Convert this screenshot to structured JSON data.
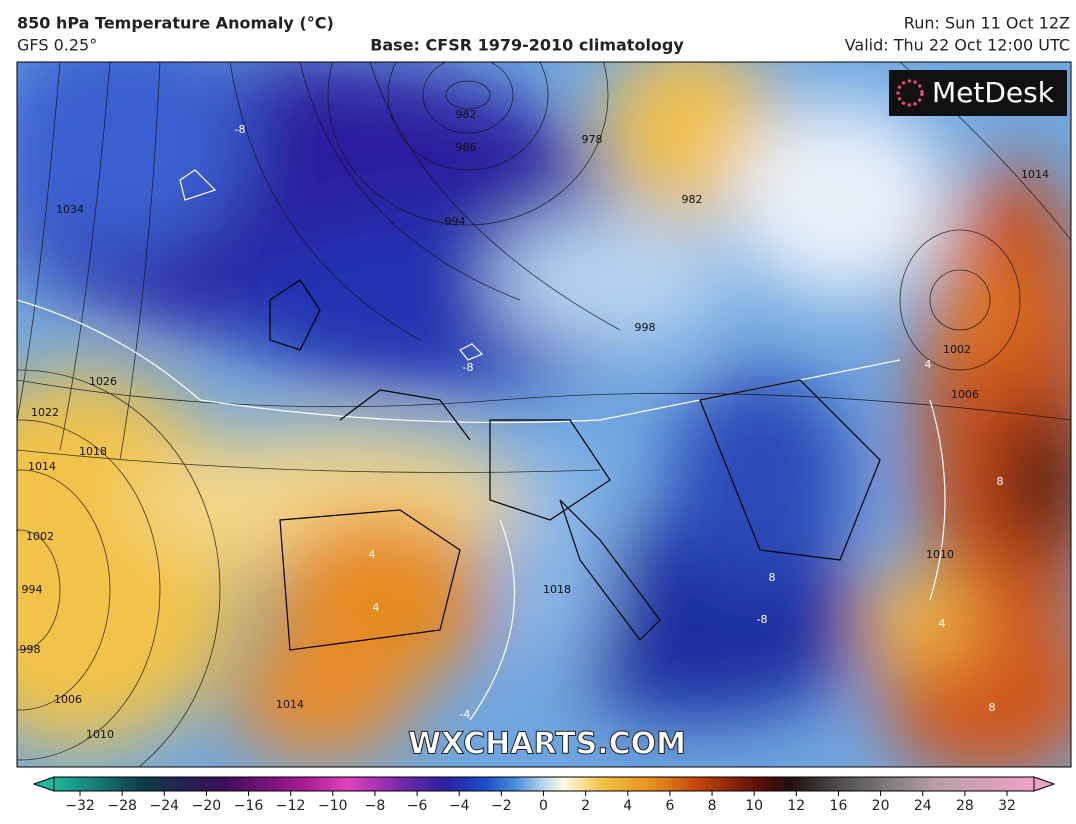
{
  "header": {
    "title": "850 hPa Temperature Anomaly (°C)",
    "model": "GFS 0.25°",
    "base": "Base: CFSR 1979-2010 climatology",
    "run": "Run: Sun 11 Oct 12Z",
    "valid": "Valid: Thu 22 Oct 12:00 UTC"
  },
  "map": {
    "logo": "MetDesk",
    "watermark": "WXCHARTS.COM",
    "isobar_labels": [
      "1034",
      "1026",
      "1022",
      "1018",
      "1014",
      "1002",
      "994",
      "998",
      "1006",
      "1010",
      "982",
      "986",
      "994",
      "998",
      "1002",
      "1006",
      "1014",
      "982",
      "978",
      "1018",
      "1014",
      "1010"
    ],
    "anomaly_labels": [
      "-8",
      "-8",
      "4",
      "4",
      "8",
      "8",
      "-8",
      "-4",
      "4",
      "8",
      "4"
    ]
  },
  "colorbar": {
    "labels": [
      "−32",
      "−28",
      "−24",
      "−20",
      "−16",
      "−12",
      "−10",
      "−8",
      "−6",
      "−4",
      "−2",
      "0",
      "2",
      "4",
      "6",
      "8",
      "10",
      "12",
      "16",
      "20",
      "24",
      "28",
      "32"
    ]
  }
}
